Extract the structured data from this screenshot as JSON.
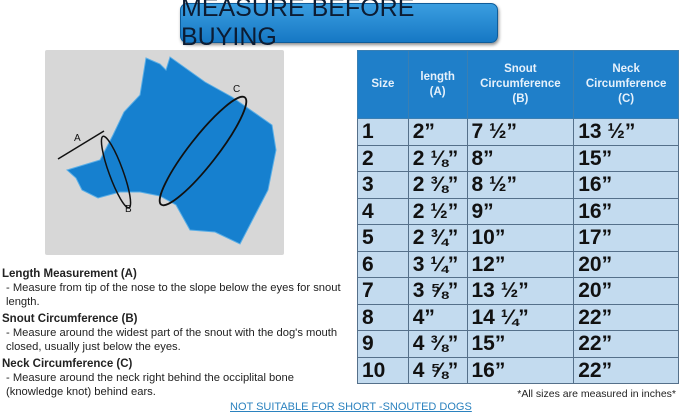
{
  "title": "MEASURE BEFORE BUYING",
  "diagram": {
    "labels": [
      "A",
      "B",
      "C"
    ],
    "dog_color": "#1680cf",
    "background_color": "#d7d7d7"
  },
  "instructions": [
    {
      "heading": "Length Measurement (A)",
      "text": "- Measure from tip of the nose to the slope below the eyes for snout length."
    },
    {
      "heading": "Snout Circumference (B)",
      "text": "- Measure around the widest part of the snout with the dog's mouth closed, usually just below the eyes."
    },
    {
      "heading": "Neck Circumference (C)",
      "text": "- Measure around the neck right behind the occiplital bone (knowledge knot) behind ears."
    }
  ],
  "table": {
    "headers": [
      "Size",
      "length (A)",
      "Snout Circumference (B)",
      "Neck Circumference (C)"
    ],
    "rows": [
      [
        "1",
        "2”",
        "7 ½”",
        "13 ½”"
      ],
      [
        "2",
        "2 ⅛”",
        "8”",
        "15”"
      ],
      [
        "3",
        "2 ⅜”",
        "8 ½”",
        "16”"
      ],
      [
        "4",
        "2 ½”",
        "9”",
        "16”"
      ],
      [
        "5",
        "2 ¾”",
        "10”",
        "17”"
      ],
      [
        "6",
        "3 ¼”",
        "12”",
        "20”"
      ],
      [
        "7",
        "3 ⅝”",
        "13 ½”",
        "20”"
      ],
      [
        "8",
        "4”",
        "14 ¼”",
        "22”"
      ],
      [
        "9",
        "4 ⅜”",
        "15”",
        "22”"
      ],
      [
        "10",
        "4 ⅝”",
        "16”",
        "22”"
      ]
    ]
  },
  "note": "*All sizes are measured in inches*",
  "warning": "NOT SUITABLE FOR SHORT -SNOUTED DOGS"
}
